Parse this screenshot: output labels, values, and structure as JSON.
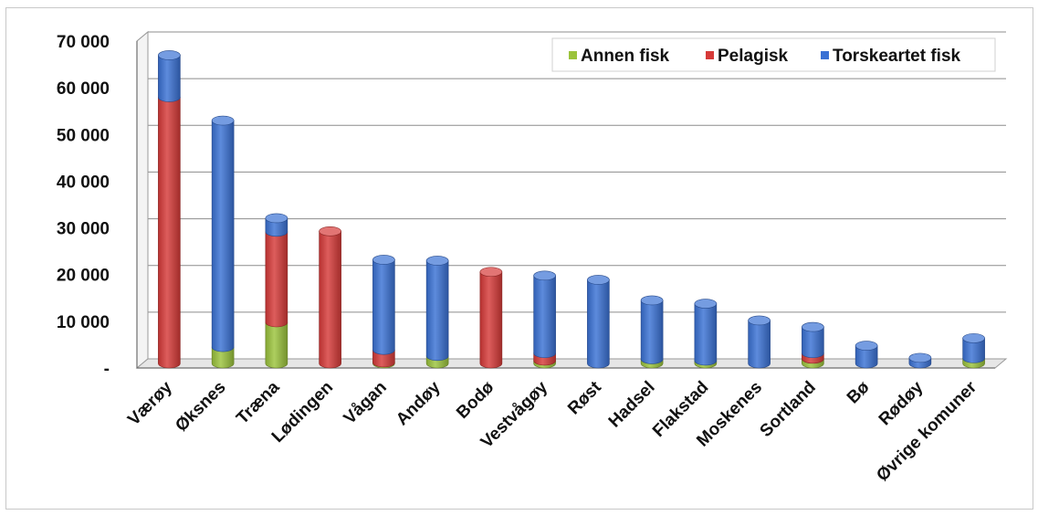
{
  "chart_data": {
    "type": "bar",
    "stacked": true,
    "categories": [
      "Værøy",
      "Øksnes",
      "Træna",
      "Lødingen",
      "Vågan",
      "Andøy",
      "Bodø",
      "Vestvågøy",
      "Røst",
      "Hadsel",
      "Flakstad",
      "Moskenes",
      "Sortland",
      "Bø",
      "Rødøy",
      "Øvrige komuner"
    ],
    "series": [
      {
        "name": "Annen fisk",
        "color": "#9bc33c",
        "values": [
          0,
          3500,
          8800,
          0,
          200,
          1600,
          0,
          600,
          0,
          900,
          600,
          0,
          1000,
          0,
          0,
          1100
        ]
      },
      {
        "name": "Pelagisk",
        "color": "#d63a38",
        "values": [
          57000,
          0,
          19400,
          28300,
          2700,
          0,
          19600,
          1600,
          0,
          0,
          0,
          0,
          1200,
          0,
          0,
          0
        ]
      },
      {
        "name": "Torskeartet fisk",
        "color": "#3a71d4",
        "values": [
          9000,
          48500,
          2900,
          0,
          19300,
          20400,
          0,
          16600,
          17900,
          12600,
          12200,
          9200,
          5600,
          3800,
          1200,
          4300
        ]
      }
    ],
    "yticks": [
      "70 000",
      "60 000",
      "50 000",
      "40 000",
      "30 000",
      "20 000",
      "10 000",
      "-"
    ],
    "ylim": [
      0,
      70000
    ],
    "grid": true,
    "legend_position": "top-right"
  }
}
